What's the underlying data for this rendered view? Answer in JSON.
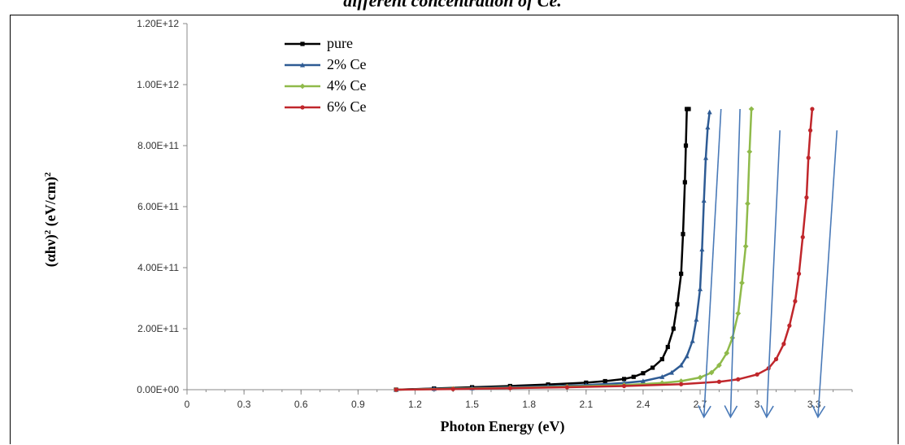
{
  "caption": "different concentration of Ce.",
  "chart_data": {
    "type": "line",
    "xlabel": "Photon Energy (eV)",
    "ylabel_main": "(αhν)",
    "ylabel_sup": "2",
    "ylabel_rest": " (eV/cm)",
    "ylabel_sup2": "2",
    "xlim": [
      0,
      3.5
    ],
    "ylim": [
      0,
      1200000000000.0
    ],
    "x_ticks": [
      "0",
      "0.3",
      "0.6",
      "0.9",
      "1.2",
      "1.5",
      "1.8",
      "2.1",
      "2.4",
      "2.7",
      "3",
      "3.3"
    ],
    "x_tick_values": [
      0,
      0.3,
      0.6,
      0.9,
      1.2,
      1.5,
      1.8,
      2.1,
      2.4,
      2.7,
      3.0,
      3.3
    ],
    "y_ticks": [
      "0.00E+00",
      "2.00E+11",
      "4.00E+11",
      "6.00E+11",
      "8.00E+11",
      "1.00E+12",
      "1.20E+12"
    ],
    "y_tick_values": [
      0,
      200000000000.0,
      400000000000.0,
      600000000000.0,
      800000000000.0,
      1000000000000.0,
      1200000000000.0
    ],
    "grid": false,
    "legend_position": "top-left",
    "series": [
      {
        "name": "pure",
        "color": "#000000",
        "marker": "square",
        "x": [
          1.1,
          1.3,
          1.5,
          1.7,
          1.9,
          2.1,
          2.2,
          2.3,
          2.35,
          2.4,
          2.45,
          2.5,
          2.53,
          2.56,
          2.58,
          2.6,
          2.61,
          2.62,
          2.625,
          2.63,
          2.64
        ],
        "y": [
          0,
          4000000000.0,
          8000000000.0,
          12000000000.0,
          17000000000.0,
          23000000000.0,
          28000000000.0,
          35000000000.0,
          42000000000.0,
          54000000000.0,
          72000000000.0,
          100000000000.0,
          140000000000.0,
          200000000000.0,
          280000000000.0,
          380000000000.0,
          510000000000.0,
          680000000000.0,
          800000000000.0,
          920000000000.0,
          920000000000.0
        ]
      },
      {
        "name": "2% Ce",
        "color": "#2e5b94",
        "marker": "triangle",
        "x": [
          1.1,
          1.3,
          1.5,
          1.7,
          1.9,
          2.1,
          2.3,
          2.4,
          2.5,
          2.55,
          2.6,
          2.63,
          2.66,
          2.68,
          2.7,
          2.71,
          2.72,
          2.73,
          2.74,
          2.75
        ],
        "y": [
          0,
          3000000000.0,
          5000000000.0,
          8000000000.0,
          11000000000.0,
          15000000000.0,
          22000000000.0,
          28000000000.0,
          42000000000.0,
          56000000000.0,
          80000000000.0,
          110000000000.0,
          160000000000.0,
          230000000000.0,
          330000000000.0,
          460000000000.0,
          620000000000.0,
          760000000000.0,
          860000000000.0,
          910000000000.0
        ]
      },
      {
        "name": "4% Ce",
        "color": "#8fba4a",
        "marker": "diamond",
        "x": [
          1.1,
          1.4,
          1.7,
          2.0,
          2.3,
          2.5,
          2.6,
          2.7,
          2.76,
          2.8,
          2.84,
          2.87,
          2.9,
          2.92,
          2.94,
          2.95,
          2.96,
          2.97
        ],
        "y": [
          0,
          3000000000.0,
          6000000000.0,
          10000000000.0,
          15000000000.0,
          22000000000.0,
          28000000000.0,
          40000000000.0,
          56000000000.0,
          80000000000.0,
          120000000000.0,
          170000000000.0,
          250000000000.0,
          350000000000.0,
          470000000000.0,
          610000000000.0,
          780000000000.0,
          920000000000.0
        ]
      },
      {
        "name": "6% Ce",
        "color": "#c0262b",
        "marker": "circle",
        "x": [
          1.1,
          1.4,
          1.7,
          2.0,
          2.3,
          2.6,
          2.8,
          2.9,
          3.0,
          3.06,
          3.1,
          3.14,
          3.17,
          3.2,
          3.22,
          3.24,
          3.26,
          3.27,
          3.28,
          3.29
        ],
        "y": [
          0,
          2000000000.0,
          5000000000.0,
          8000000000.0,
          12000000000.0,
          18000000000.0,
          26000000000.0,
          34000000000.0,
          50000000000.0,
          70000000000.0,
          100000000000.0,
          150000000000.0,
          210000000000.0,
          290000000000.0,
          380000000000.0,
          500000000000.0,
          630000000000.0,
          760000000000.0,
          850000000000.0,
          920000000000.0
        ]
      }
    ],
    "arrows": {
      "color": "#4a7ab8",
      "lines": [
        {
          "x1": 2.81,
          "y1": 920000000000.0,
          "x2": 2.72,
          "y2": -90000000000.0
        },
        {
          "x1": 2.91,
          "y1": 920000000000.0,
          "x2": 2.86,
          "y2": -90000000000.0
        },
        {
          "x1": 3.12,
          "y1": 850000000000.0,
          "x2": 3.05,
          "y2": -90000000000.0
        },
        {
          "x1": 3.42,
          "y1": 850000000000.0,
          "x2": 3.32,
          "y2": -90000000000.0
        }
      ]
    }
  }
}
